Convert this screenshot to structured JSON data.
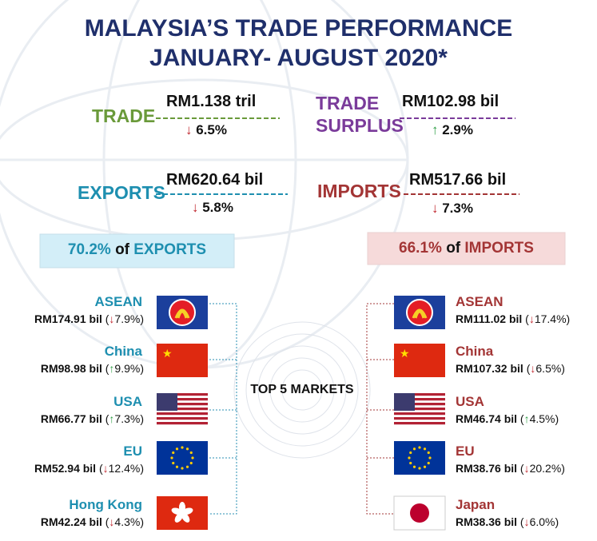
{
  "title": [
    "MALAYSIA’S TRADE PERFORMANCE",
    "JANUARY- AUGUST 2020*"
  ],
  "summary": [
    {
      "label": [
        "TRADE"
      ],
      "value": "RM1.138 tril",
      "change": "↓ 6.5%"
    },
    {
      "label": [
        "TRADE",
        "SURPLUS"
      ],
      "value": "RM102.98 bil",
      "change": "↑ 2.9%"
    },
    {
      "label": [
        "EXPORTS"
      ],
      "value": "RM620.64 bil",
      "change": "↓ 5.8%"
    },
    {
      "label": [
        "IMPORTS"
      ],
      "value": "RM517.66 bil",
      "change": "↓ 7.3%"
    }
  ],
  "center": "TOP 5 MARKETS",
  "exports": {
    "share": "70.2%",
    "of": "of",
    "label": "EXPORTS",
    "markets": [
      {
        "name": "ASEAN",
        "value": "RM174.91 bil",
        "change": "(↓7.9%)"
      },
      {
        "name": "China",
        "value": "RM98.98 bil",
        "change": "(↑9.9%)"
      },
      {
        "name": "USA",
        "value": "RM66.77 bil",
        "change": "(↑7.3%)"
      },
      {
        "name": "EU",
        "value": "RM52.94 bil",
        "change": "(↓12.4%)"
      },
      {
        "name": "Hong Kong",
        "value": "RM42.24 bil",
        "change": "(↓4.3%)"
      }
    ]
  },
  "imports": {
    "share": "66.1%",
    "of": "of",
    "label": "IMPORTS",
    "markets": [
      {
        "name": "ASEAN",
        "value": "RM111.02 bil",
        "change": "(↓17.4%)"
      },
      {
        "name": "China",
        "value": "RM107.32 bil",
        "change": "(↓6.5%)"
      },
      {
        "name": "USA",
        "value": "RM46.74 bil",
        "change": "(↑4.5%)"
      },
      {
        "name": "EU",
        "value": "RM38.76 bil",
        "change": "(↓20.2%)"
      },
      {
        "name": "Japan",
        "value": "RM38.36 bil",
        "change": "(↓6.0%)"
      }
    ]
  }
}
